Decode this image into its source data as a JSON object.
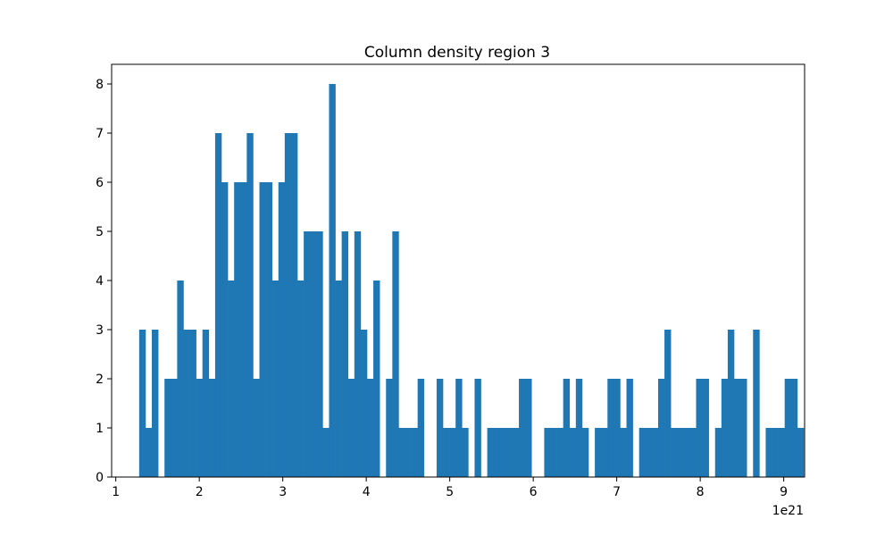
{
  "chart_data": {
    "type": "bar",
    "title": "Column density region 3",
    "xlabel": "",
    "ylabel": "",
    "x_offset_label": "1e21",
    "xlim": [
      0.95,
      9.25
    ],
    "ylim": [
      0,
      8.4
    ],
    "xticks": [
      1,
      2,
      3,
      4,
      5,
      6,
      7,
      8,
      9
    ],
    "yticks": [
      0,
      1,
      2,
      3,
      4,
      5,
      6,
      7,
      8
    ],
    "bar_color": "#1f77b4",
    "grid": false,
    "bin_start": 1.28,
    "bin_width": 0.0758,
    "counts": [
      3,
      1,
      3,
      0,
      2,
      2,
      4,
      3,
      3,
      2,
      3,
      2,
      7,
      6,
      4,
      6,
      6,
      7,
      2,
      6,
      6,
      4,
      6,
      7,
      7,
      4,
      5,
      5,
      5,
      1,
      8,
      4,
      5,
      2,
      5,
      3,
      2,
      4,
      0,
      2,
      5,
      1,
      1,
      1,
      2,
      0,
      0,
      2,
      1,
      1,
      2,
      1,
      0,
      2,
      0,
      1,
      1,
      1,
      1,
      1,
      2,
      2,
      0,
      0,
      1,
      1,
      1,
      2,
      1,
      2,
      1,
      0,
      1,
      1,
      2,
      2,
      1,
      2,
      0,
      1,
      1,
      1,
      2,
      3,
      1,
      1,
      1,
      1,
      2,
      2,
      0,
      1,
      2,
      3,
      2,
      2,
      0,
      3,
      0,
      1,
      1,
      1,
      2,
      2,
      1
    ]
  }
}
